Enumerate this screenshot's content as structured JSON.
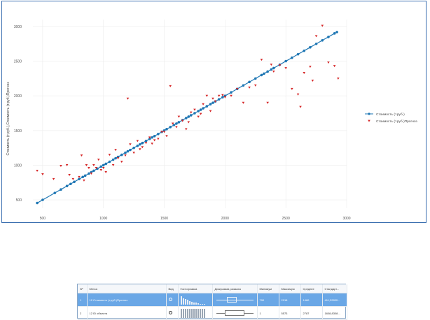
{
  "chart_data": {
    "type": "scatter",
    "xlim": [
      420,
      3000
    ],
    "ylim": [
      380,
      3100
    ],
    "x_ticks": [
      "500",
      "1000",
      "1500",
      "2000",
      "2500",
      "3000"
    ],
    "y_ticks": [
      "500",
      "1000",
      "1500",
      "2000",
      "2500",
      "3000"
    ],
    "ylabel": "Стоимость (т.руб.),Стоимость (т.руб.)Прогноз",
    "grid": true,
    "legend_position": "right",
    "series": [
      {
        "name": "Стоимость (т.руб.)",
        "marker": "dot-line",
        "color": "#1f77b4",
        "x": [
          455,
          500,
          600,
          650,
          700,
          730,
          760,
          800,
          830,
          850,
          880,
          900,
          920,
          950,
          980,
          1000,
          1020,
          1050,
          1080,
          1100,
          1120,
          1150,
          1180,
          1200,
          1220,
          1250,
          1280,
          1300,
          1320,
          1350,
          1380,
          1400,
          1420,
          1450,
          1480,
          1500,
          1520,
          1550,
          1580,
          1600,
          1620,
          1650,
          1680,
          1700,
          1720,
          1750,
          1780,
          1800,
          1820,
          1850,
          1880,
          1900,
          1920,
          1950,
          1980,
          2000,
          2050,
          2100,
          2150,
          2200,
          2250,
          2300,
          2320,
          2350,
          2380,
          2400,
          2450,
          2500,
          2550,
          2600,
          2650,
          2700,
          2750,
          2800,
          2850,
          2900,
          2920
        ],
        "y": [
          455,
          500,
          600,
          650,
          700,
          730,
          760,
          800,
          830,
          850,
          880,
          900,
          920,
          950,
          980,
          1000,
          1020,
          1050,
          1080,
          1100,
          1120,
          1150,
          1180,
          1200,
          1220,
          1250,
          1280,
          1300,
          1320,
          1350,
          1380,
          1400,
          1420,
          1450,
          1480,
          1500,
          1520,
          1550,
          1580,
          1600,
          1620,
          1650,
          1680,
          1700,
          1720,
          1750,
          1780,
          1800,
          1820,
          1850,
          1880,
          1900,
          1920,
          1950,
          1980,
          2000,
          2050,
          2100,
          2150,
          2200,
          2250,
          2300,
          2320,
          2350,
          2380,
          2400,
          2450,
          2500,
          2550,
          2600,
          2650,
          2700,
          2750,
          2800,
          2850,
          2900,
          2920
        ]
      },
      {
        "name": "Стоимость (т.руб.)Прогноз",
        "marker": "triangle-down",
        "color": "#d62728",
        "x": [
          455,
          500,
          590,
          650,
          700,
          720,
          750,
          800,
          820,
          840,
          860,
          880,
          900,
          920,
          940,
          960,
          980,
          1000,
          1020,
          1050,
          1080,
          1100,
          1120,
          1150,
          1180,
          1200,
          1220,
          1250,
          1280,
          1300,
          1320,
          1350,
          1380,
          1400,
          1420,
          1450,
          1480,
          1500,
          1520,
          1550,
          1570,
          1600,
          1620,
          1650,
          1680,
          1700,
          1720,
          1750,
          1780,
          1800,
          1820,
          1850,
          1880,
          1900,
          1920,
          1950,
          1980,
          2000,
          2050,
          2100,
          2150,
          2200,
          2250,
          2300,
          2350,
          2380,
          2400,
          2450,
          2500,
          2550,
          2600,
          2620,
          2650,
          2700,
          2720,
          2750,
          2800,
          2850,
          2900,
          2930
        ],
        "y": [
          920,
          870,
          800,
          990,
          1000,
          860,
          800,
          830,
          1140,
          780,
          1000,
          960,
          880,
          1000,
          960,
          1080,
          930,
          960,
          900,
          1150,
          1000,
          1220,
          1100,
          1050,
          1140,
          1960,
          1300,
          1180,
          1350,
          1230,
          1260,
          1320,
          1400,
          1310,
          1360,
          1380,
          1480,
          1480,
          1420,
          2140,
          1600,
          1550,
          1700,
          1640,
          1520,
          1620,
          1760,
          1800,
          1700,
          1740,
          1880,
          2000,
          1780,
          1960,
          1920,
          2000,
          2010,
          1980,
          2000,
          2100,
          1900,
          2120,
          2150,
          2520,
          1900,
          2450,
          2350,
          2440,
          2400,
          2100,
          2020,
          1840,
          2330,
          2420,
          2220,
          2860,
          3010,
          2480,
          2430,
          2250
        ]
      }
    ]
  },
  "stats_table": {
    "columns": [
      "Nº",
      "Метка",
      "Вид",
      "Гистограмма",
      "Диаграмма размаха",
      "Минимум",
      "Максимум",
      "Среднее",
      "Стандарт..."
    ],
    "rows": [
      {
        "num": "1",
        "label": "12 Стоимость (т.руб.)Прогноз",
        "min": "790",
        "max": "2918",
        "mean": "1460",
        "std": "411,32830...",
        "selected": true,
        "hist": [
          0.9,
          0.7,
          0.6,
          0.55,
          0.4,
          0.3,
          0.25,
          0.2,
          0.15,
          0.1,
          0.1,
          0.08
        ],
        "box": {
          "q1": 0.3,
          "q3": 0.55
        }
      },
      {
        "num": "2",
        "label": "12 ID объекта",
        "min": "1",
        "max": "5573",
        "mean": "2787",
        "std": "1608,8308...",
        "selected": false,
        "hist": [
          1,
          1,
          1,
          1,
          1,
          1,
          1,
          1,
          1,
          1,
          1,
          1
        ],
        "box": {
          "q1": 0.25,
          "q3": 0.75
        }
      }
    ]
  }
}
